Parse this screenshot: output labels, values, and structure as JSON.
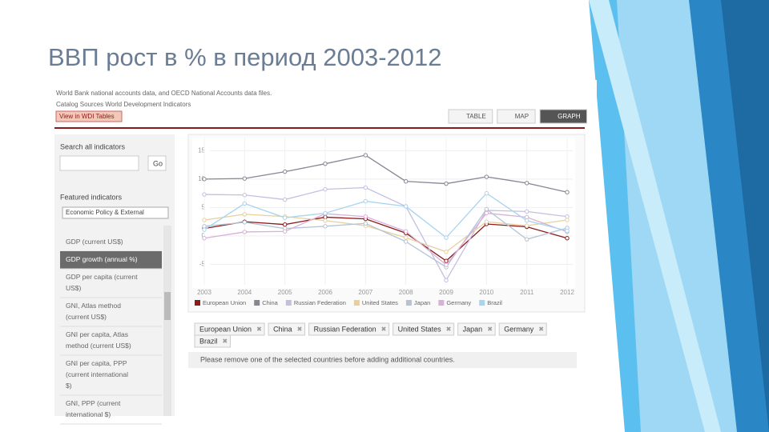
{
  "slide": {
    "title": "ВВП рост в % в период 2003-2012"
  },
  "page": {
    "source_lines": [
      "World Bank national accounts data, and OECD National Accounts data files.",
      "Catalog Sources World Development Indicators"
    ],
    "view_button": "View in WDI Tables",
    "tabs": [
      "TABLE",
      "MAP",
      "GRAPH"
    ],
    "search_label": "Search all indicators",
    "go_button": "Go",
    "featured_label": "Featured indicators",
    "dropdown": "Economic Policy & External",
    "indicators": [
      "GDP (current US$)",
      "GDP growth (annual %)",
      "GDP per capita (current US$)",
      "GNI, Atlas method (current US$)",
      "GNI per capita, Atlas method (current US$)",
      "GNI per capita, PPP (current international $)",
      "GNI, PPP (current international $)"
    ],
    "selected_indicator": 1,
    "message": "Please remove one of the selected countries before adding additional countries."
  },
  "chart_data": {
    "type": "line",
    "x": [
      2003,
      2004,
      2005,
      2006,
      2007,
      2008,
      2009,
      2010,
      2011,
      2012
    ],
    "xlim": [
      2003,
      2012
    ],
    "xticks": [
      2003,
      2004,
      2005,
      2006,
      2007,
      2008,
      2009,
      2010,
      2011,
      2012
    ],
    "ylim": [
      -8.6,
      17.3
    ],
    "yticks": [
      15,
      10,
      5,
      0,
      -5
    ],
    "grid": true,
    "series": [
      {
        "name": "European Union",
        "color": "#8b1a1a",
        "values": [
          1.3,
          2.5,
          2.0,
          3.3,
          3.0,
          0.5,
          -4.4,
          2.1,
          1.6,
          -0.4
        ]
      },
      {
        "name": "China",
        "color": "#8a8494",
        "values": [
          10.0,
          10.1,
          11.3,
          12.7,
          14.2,
          9.6,
          9.2,
          10.4,
          9.3,
          7.7
        ]
      },
      {
        "name": "Russian Federation",
        "color": "#c4bfe0",
        "values": [
          7.3,
          7.2,
          6.4,
          8.2,
          8.5,
          5.2,
          -7.8,
          4.5,
          4.3,
          3.4
        ]
      },
      {
        "name": "United States",
        "color": "#e8cf9c",
        "values": [
          2.8,
          3.8,
          3.4,
          2.7,
          1.8,
          -0.3,
          -2.8,
          2.5,
          1.8,
          2.8
        ]
      },
      {
        "name": "Japan",
        "color": "#b4c4d4",
        "values": [
          1.7,
          2.4,
          1.3,
          1.7,
          2.2,
          -1.0,
          -5.5,
          4.7,
          -0.6,
          1.4
        ]
      },
      {
        "name": "Germany",
        "color": "#d8b0d8",
        "values": [
          -0.4,
          0.7,
          0.8,
          3.9,
          3.4,
          0.8,
          -5.1,
          4.0,
          3.3,
          0.7
        ]
      },
      {
        "name": "Brazil",
        "color": "#a8d4f0",
        "values": [
          1.1,
          5.7,
          3.2,
          4.0,
          6.1,
          5.2,
          -0.3,
          7.5,
          2.7,
          0.9
        ]
      }
    ]
  }
}
